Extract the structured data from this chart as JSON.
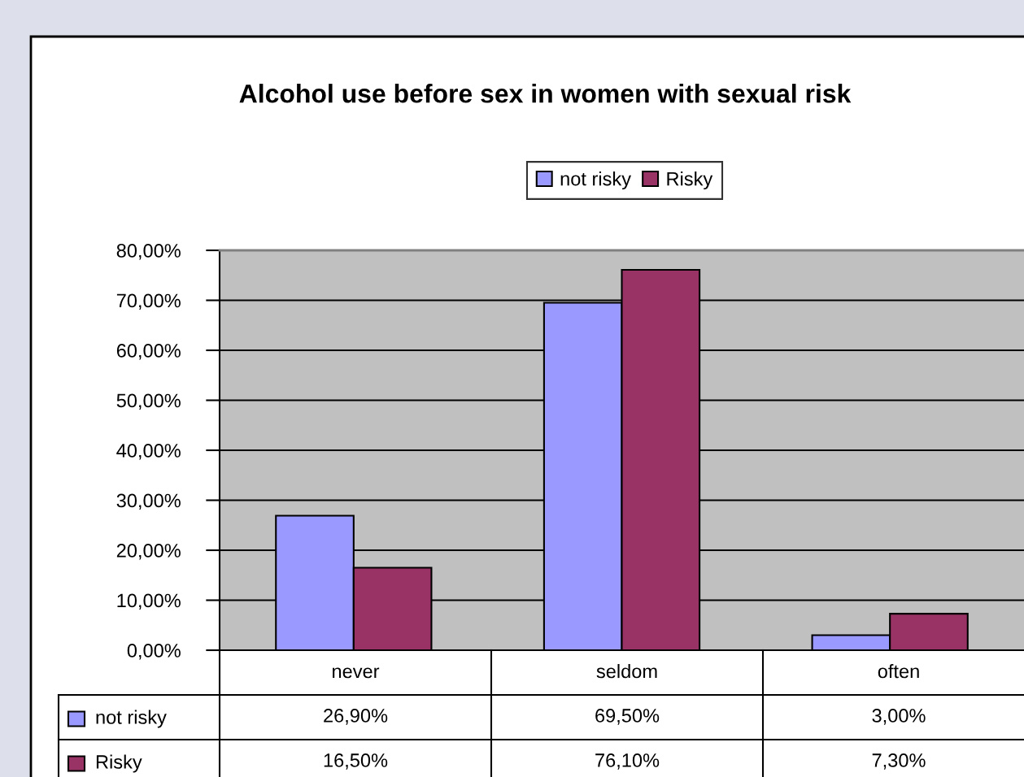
{
  "chart_data": {
    "type": "bar",
    "title": "Alcohol use before sex in women with sexual risk",
    "categories": [
      "never",
      "seldom",
      "often"
    ],
    "series": [
      {
        "name": "not risky",
        "color": "#9999ff",
        "values": [
          26.9,
          69.5,
          3.0
        ],
        "value_labels": [
          "26,90%",
          "69,50%",
          "3,00%"
        ]
      },
      {
        "name": "Risky",
        "color": "#993366",
        "values": [
          16.5,
          76.1,
          7.3
        ],
        "value_labels": [
          "16,50%",
          "76,10%",
          "7,30%"
        ]
      }
    ],
    "ylim": [
      0,
      80
    ],
    "yticks": [
      {
        "value": 0,
        "label": "0,00%"
      },
      {
        "value": 10,
        "label": "10,00%"
      },
      {
        "value": 20,
        "label": "20,00%"
      },
      {
        "value": 30,
        "label": "30,00%"
      },
      {
        "value": 40,
        "label": "40,00%"
      },
      {
        "value": 50,
        "label": "50,00%"
      },
      {
        "value": 60,
        "label": "60,00%"
      },
      {
        "value": 70,
        "label": "70,00%"
      },
      {
        "value": 80,
        "label": "80,00%"
      }
    ],
    "grid": "y",
    "legend": "top"
  }
}
